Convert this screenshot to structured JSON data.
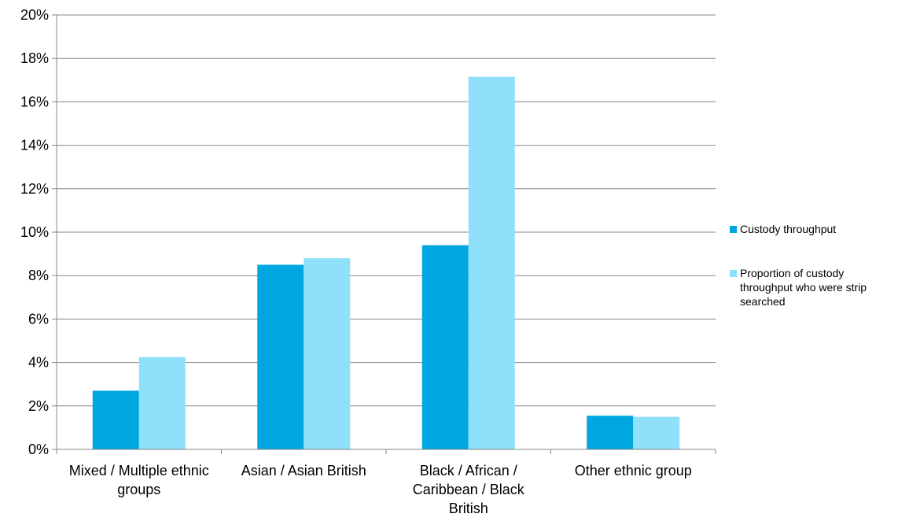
{
  "chart_data": {
    "type": "bar",
    "title": "",
    "xlabel": "",
    "ylabel": "",
    "categories": [
      "Mixed / Multiple ethnic groups",
      "Asian / Asian British",
      "Black / African / Caribbean / Black British",
      "Other ethnic group"
    ],
    "series": [
      {
        "name": "Custody throughput",
        "color": "#00a6e0",
        "values": [
          2.7,
          8.5,
          9.4,
          1.55
        ]
      },
      {
        "name": "Proportion of custody throughput who were strip searched",
        "color": "#8fe0fb",
        "values": [
          4.25,
          8.8,
          17.15,
          1.5
        ]
      }
    ],
    "ylim": [
      0,
      20
    ],
    "yticks": [
      0,
      2,
      4,
      6,
      8,
      10,
      12,
      14,
      16,
      18,
      20
    ],
    "ytick_labels": [
      "0%",
      "2%",
      "4%",
      "6%",
      "8%",
      "10%",
      "12%",
      "14%",
      "16%",
      "18%",
      "20%"
    ],
    "grid": true,
    "legend_position": "right"
  }
}
